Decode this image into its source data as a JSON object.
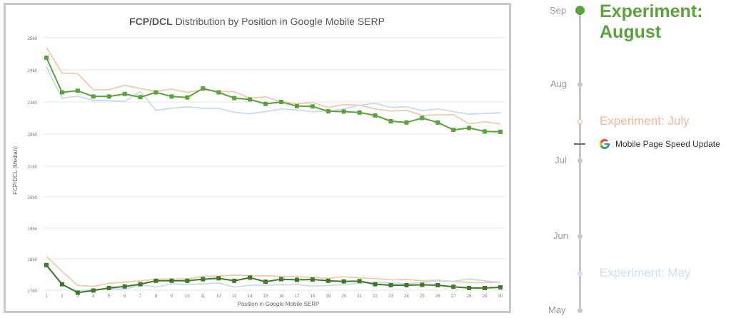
{
  "chart_data": {
    "type": "line",
    "title_bold": "FCP/DCL",
    "title_rest": " Distribution by Position in Google Mobile SERP",
    "xlabel": "Position in Google Mobile SERP",
    "ylabel": "FCP/DCL (Median)",
    "yticks": [
      "1760",
      "1860",
      "1960",
      "2060",
      "2160",
      "2260",
      "2360",
      "2460",
      "2560"
    ],
    "x": [
      1,
      2,
      3,
      4,
      5,
      6,
      7,
      8,
      9,
      10,
      11,
      12,
      13,
      14,
      15,
      16,
      17,
      18,
      19,
      20,
      21,
      22,
      23,
      24,
      25,
      26,
      27,
      28,
      29,
      30
    ],
    "xtick_labels": [
      "1",
      "2",
      "3",
      "4",
      "5",
      "6",
      "7",
      "8",
      "9",
      "10",
      "11",
      "12",
      "13",
      "14",
      "15",
      "16",
      "17",
      "18",
      "19",
      "20",
      "21",
      "22",
      "23",
      "24",
      "25",
      "26",
      "27",
      "28",
      "29",
      "30"
    ],
    "panels": [
      {
        "series": [
          {
            "color": "#f4c9a8",
            "values": [
              2530,
              2450,
              2448,
              2398,
              2398,
              2412,
              2402,
              2393,
              2400,
              2390,
              2398,
              2393,
              2392,
              2372,
              2376,
              2360,
              2354,
              2358,
              2343,
              2352,
              2350,
              2338,
              2332,
              2334,
              2318,
              2320,
              2320,
              2292,
              2298,
              2292
            ]
          },
          {
            "color": "#c6dcec",
            "values": [
              2470,
              2372,
              2378,
              2365,
              2364,
              2362,
              2392,
              2334,
              2340,
              2345,
              2340,
              2340,
              2328,
              2323,
              2330,
              2338,
              2335,
              2330,
              2332,
              2338,
              2350,
              2356,
              2343,
              2345,
              2333,
              2338,
              2330,
              2322,
              2324,
              2326
            ]
          },
          {
            "color": "#5aa33c",
            "marker": "square",
            "values": [
              2498,
              2390,
              2395,
              2377,
              2377,
              2385,
              2375,
              2390,
              2377,
              2374,
              2402,
              2390,
              2372,
              2368,
              2354,
              2360,
              2347,
              2346,
              2331,
              2330,
              2327,
              2318,
              2300,
              2296,
              2310,
              2296,
              2273,
              2279,
              2268,
              2267
            ]
          }
        ]
      },
      {
        "series": [
          {
            "color": "#f4c9a8",
            "values": [
              1868,
              1820,
              1775,
              1772,
              1782,
              1786,
              1790,
              1795,
              1796,
              1796,
              1804,
              1805,
              1808,
              1806,
              1806,
              1804,
              1803,
              1801,
              1798,
              1803,
              1799,
              1797,
              1793,
              1794,
              1790,
              1792,
              1788,
              1784,
              1784,
              1784
            ]
          },
          {
            "color": "#c6dcec",
            "values": [
              1838,
              1776,
              1758,
              1762,
              1765,
              1763,
              1777,
              1770,
              1780,
              1778,
              1780,
              1783,
              1770,
              1776,
              1776,
              1777,
              1778,
              1773,
              1775,
              1777,
              1782,
              1785,
              1784,
              1780,
              1785,
              1789,
              1788,
              1796,
              1790,
              1785
            ]
          },
          {
            "color": "#3d7a27",
            "marker": "square",
            "values": [
              1840,
              1779,
              1752,
              1759,
              1767,
              1772,
              1779,
              1790,
              1790,
              1790,
              1795,
              1798,
              1790,
              1800,
              1787,
              1795,
              1793,
              1794,
              1790,
              1788,
              1789,
              1779,
              1776,
              1776,
              1777,
              1776,
              1771,
              1767,
              1767,
              1769
            ]
          }
        ]
      }
    ]
  },
  "timeline": {
    "months": [
      "Sep",
      "Aug",
      "Jul",
      "Jun",
      "May"
    ],
    "experiment_august_line1": "Experiment:",
    "experiment_august_line2": "August",
    "experiment_july": "Experiment: July",
    "update_label": "Mobile Page Speed Update",
    "experiment_may": "Experiment: May",
    "colors": {
      "august": "#5aa33c",
      "july": "#f2b895",
      "may": "#cfe0ef",
      "line": "#c8c8c8"
    }
  }
}
